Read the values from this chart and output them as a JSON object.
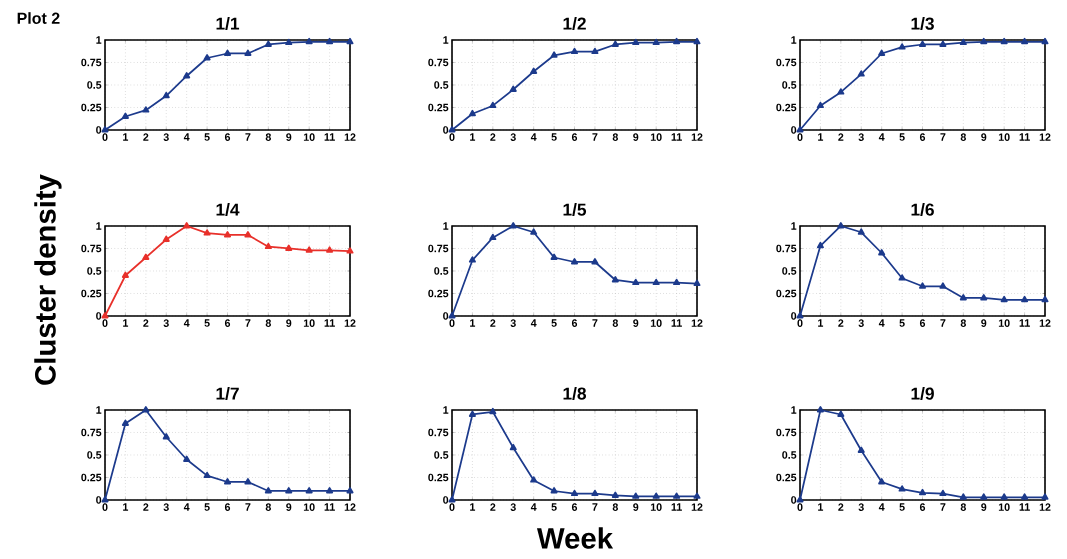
{
  "chart_data": [
    {
      "type": "line",
      "title": "1/1",
      "annotations": [
        "Plot 2"
      ],
      "x": [
        0,
        1,
        2,
        3,
        4,
        5,
        6,
        7,
        8,
        9,
        10,
        11,
        12
      ],
      "series": [
        {
          "color": "#1c3a8c",
          "values": [
            0,
            0.15,
            0.22,
            0.38,
            0.6,
            0.8,
            0.85,
            0.85,
            0.95,
            0.97,
            0.98,
            0.98,
            0.98
          ]
        }
      ],
      "xlim": [
        0,
        12
      ],
      "ylim": [
        0,
        1
      ],
      "xticks": [
        0,
        1,
        2,
        3,
        4,
        5,
        6,
        7,
        8,
        9,
        10,
        11,
        12
      ],
      "yticks": [
        0,
        0.25,
        0.5,
        0.75,
        1
      ],
      "grid": true,
      "marker": "triangle",
      "line_style": "solid"
    },
    {
      "type": "line",
      "title": "1/2",
      "x": [
        0,
        1,
        2,
        3,
        4,
        5,
        6,
        7,
        8,
        9,
        10,
        11,
        12
      ],
      "series": [
        {
          "color": "#1c3a8c",
          "values": [
            0,
            0.18,
            0.27,
            0.45,
            0.65,
            0.83,
            0.87,
            0.87,
            0.95,
            0.97,
            0.97,
            0.98,
            0.98
          ]
        }
      ],
      "xlim": [
        0,
        12
      ],
      "ylim": [
        0,
        1
      ],
      "xticks": [
        0,
        1,
        2,
        3,
        4,
        5,
        6,
        7,
        8,
        9,
        10,
        11,
        12
      ],
      "yticks": [
        0,
        0.25,
        0.5,
        0.75,
        1
      ],
      "grid": true,
      "marker": "triangle",
      "line_style": "solid"
    },
    {
      "type": "line",
      "title": "1/3",
      "x": [
        0,
        1,
        2,
        3,
        4,
        5,
        6,
        7,
        8,
        9,
        10,
        11,
        12
      ],
      "series": [
        {
          "color": "#1c3a8c",
          "values": [
            0,
            0.27,
            0.42,
            0.62,
            0.85,
            0.92,
            0.95,
            0.95,
            0.97,
            0.98,
            0.98,
            0.98,
            0.98
          ]
        }
      ],
      "xlim": [
        0,
        12
      ],
      "ylim": [
        0,
        1
      ],
      "xticks": [
        0,
        1,
        2,
        3,
        4,
        5,
        6,
        7,
        8,
        9,
        10,
        11,
        12
      ],
      "yticks": [
        0,
        0.25,
        0.5,
        0.75,
        1
      ],
      "grid": true,
      "marker": "triangle",
      "line_style": "solid"
    },
    {
      "type": "line",
      "title": "1/4",
      "ylabel": "Cluster density",
      "x": [
        0,
        1,
        2,
        3,
        4,
        5,
        6,
        7,
        8,
        9,
        10,
        11,
        12
      ],
      "series": [
        {
          "color": "#e8302a",
          "values": [
            0,
            0.45,
            0.65,
            0.85,
            1,
            0.92,
            0.9,
            0.9,
            0.77,
            0.75,
            0.73,
            0.73,
            0.72
          ]
        }
      ],
      "xlim": [
        0,
        12
      ],
      "ylim": [
        0,
        1
      ],
      "xticks": [
        0,
        1,
        2,
        3,
        4,
        5,
        6,
        7,
        8,
        9,
        10,
        11,
        12
      ],
      "yticks": [
        0,
        0.25,
        0.5,
        0.75,
        1
      ],
      "grid": true,
      "marker": "triangle",
      "line_style": "solid"
    },
    {
      "type": "line",
      "title": "1/5",
      "x": [
        0,
        1,
        2,
        3,
        4,
        5,
        6,
        7,
        8,
        9,
        10,
        11,
        12
      ],
      "series": [
        {
          "color": "#1c3a8c",
          "values": [
            0,
            0.62,
            0.87,
            1,
            0.93,
            0.65,
            0.6,
            0.6,
            0.4,
            0.37,
            0.37,
            0.37,
            0.36
          ]
        }
      ],
      "xlim": [
        0,
        12
      ],
      "ylim": [
        0,
        1
      ],
      "xticks": [
        0,
        1,
        2,
        3,
        4,
        5,
        6,
        7,
        8,
        9,
        10,
        11,
        12
      ],
      "yticks": [
        0,
        0.25,
        0.5,
        0.75,
        1
      ],
      "grid": true,
      "marker": "triangle",
      "line_style": "solid"
    },
    {
      "type": "line",
      "title": "1/6",
      "x": [
        0,
        1,
        2,
        3,
        4,
        5,
        6,
        7,
        8,
        9,
        10,
        11,
        12
      ],
      "series": [
        {
          "color": "#1c3a8c",
          "values": [
            0,
            0.78,
            1,
            0.93,
            0.7,
            0.42,
            0.33,
            0.33,
            0.2,
            0.2,
            0.18,
            0.18,
            0.18
          ]
        }
      ],
      "xlim": [
        0,
        12
      ],
      "ylim": [
        0,
        1
      ],
      "xticks": [
        0,
        1,
        2,
        3,
        4,
        5,
        6,
        7,
        8,
        9,
        10,
        11,
        12
      ],
      "yticks": [
        0,
        0.25,
        0.5,
        0.75,
        1
      ],
      "grid": true,
      "marker": "triangle",
      "line_style": "solid"
    },
    {
      "type": "line",
      "title": "1/7",
      "x": [
        0,
        1,
        2,
        3,
        4,
        5,
        6,
        7,
        8,
        9,
        10,
        11,
        12
      ],
      "series": [
        {
          "color": "#1c3a8c",
          "values": [
            0,
            0.85,
            1,
            0.7,
            0.45,
            0.27,
            0.2,
            0.2,
            0.1,
            0.1,
            0.1,
            0.1,
            0.1
          ]
        }
      ],
      "xlim": [
        0,
        12
      ],
      "ylim": [
        0,
        1
      ],
      "xticks": [
        0,
        1,
        2,
        3,
        4,
        5,
        6,
        7,
        8,
        9,
        10,
        11,
        12
      ],
      "yticks": [
        0,
        0.25,
        0.5,
        0.75,
        1
      ],
      "grid": true,
      "marker": "triangle",
      "line_style": "solid"
    },
    {
      "type": "line",
      "title": "1/8",
      "xlabel": "Week",
      "x": [
        0,
        1,
        2,
        3,
        4,
        5,
        6,
        7,
        8,
        9,
        10,
        11,
        12
      ],
      "series": [
        {
          "color": "#1c3a8c",
          "values": [
            0,
            0.95,
            0.98,
            0.58,
            0.22,
            0.1,
            0.07,
            0.07,
            0.05,
            0.04,
            0.04,
            0.04,
            0.04
          ]
        }
      ],
      "xlim": [
        0,
        12
      ],
      "ylim": [
        0,
        1
      ],
      "xticks": [
        0,
        1,
        2,
        3,
        4,
        5,
        6,
        7,
        8,
        9,
        10,
        11,
        12
      ],
      "yticks": [
        0,
        0.25,
        0.5,
        0.75,
        1
      ],
      "grid": true,
      "marker": "triangle",
      "line_style": "solid"
    },
    {
      "type": "line",
      "title": "1/9",
      "x": [
        0,
        1,
        2,
        3,
        4,
        5,
        6,
        7,
        8,
        9,
        10,
        11,
        12
      ],
      "series": [
        {
          "color": "#1c3a8c",
          "values": [
            0,
            1,
            0.95,
            0.55,
            0.2,
            0.12,
            0.08,
            0.07,
            0.03,
            0.03,
            0.03,
            0.03,
            0.03
          ]
        }
      ],
      "xlim": [
        0,
        12
      ],
      "ylim": [
        0,
        1
      ],
      "xticks": [
        0,
        1,
        2,
        3,
        4,
        5,
        6,
        7,
        8,
        9,
        10,
        11,
        12
      ],
      "yticks": [
        0,
        0.25,
        0.5,
        0.75,
        1
      ],
      "grid": true,
      "marker": "triangle",
      "line_style": "solid"
    }
  ]
}
